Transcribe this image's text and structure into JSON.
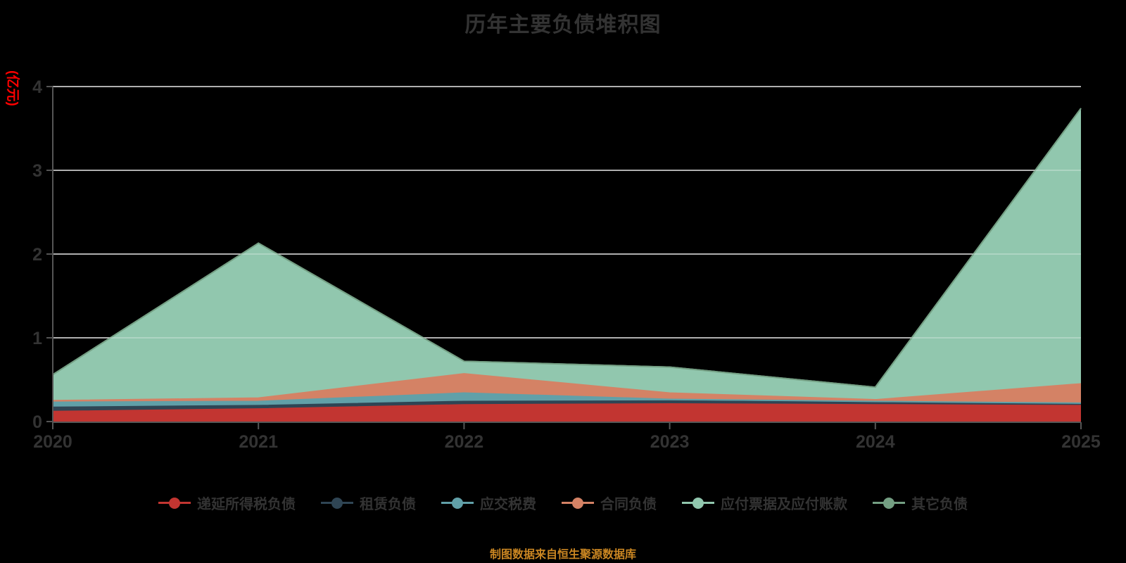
{
  "title": "历年主要负债堆积图",
  "y_axis_name": "(亿元)",
  "footer": "制图数据来自恒生聚源数据库",
  "colors": {
    "background": "#000000",
    "title": "#333333",
    "axis_label": "#333333",
    "axis_line": "#555555",
    "grid_line": "#cccccc",
    "y_axis_name": "#ff0000",
    "footer": "#ca8622"
  },
  "chart_data": {
    "type": "area",
    "stacked": true,
    "title": "历年主要负债堆积图",
    "xlabel": "",
    "ylabel": "(亿元)",
    "categories": [
      "2020",
      "2021",
      "2022",
      "2023",
      "2024",
      "2025"
    ],
    "yticks": [
      0,
      1,
      2,
      3,
      4
    ],
    "ylim": [
      0,
      4
    ],
    "grid": true,
    "legend_position": "bottom",
    "series": [
      {
        "key": "deferred-tax-liabilities",
        "name": "递延所得税负债",
        "color": "#c23531",
        "values": [
          0.12,
          0.15,
          0.2,
          0.21,
          0.2,
          0.19
        ]
      },
      {
        "key": "lease-liabilities",
        "name": "租赁负债",
        "color": "#2f4554",
        "values": [
          0.05,
          0.04,
          0.04,
          0.035,
          0.03,
          0.025
        ]
      },
      {
        "key": "taxes-payable",
        "name": "应交税费",
        "color": "#61a0a8",
        "values": [
          0.06,
          0.05,
          0.1,
          0.02,
          0.01,
          0.005
        ]
      },
      {
        "key": "contract-liabilities",
        "name": "合同负债",
        "color": "#d48265",
        "values": [
          0.02,
          0.04,
          0.23,
          0.075,
          0.02,
          0.23
        ]
      },
      {
        "key": "notes-and-accounts-payable",
        "name": "应付票据及应付账款",
        "color": "#91c7ae",
        "values": [
          0.31,
          1.85,
          0.15,
          0.31,
          0.15,
          3.29
        ]
      },
      {
        "key": "other-liabilities",
        "name": "其它负债",
        "color": "#749f83",
        "values": [
          0,
          0,
          0,
          0,
          0,
          0
        ]
      }
    ]
  }
}
